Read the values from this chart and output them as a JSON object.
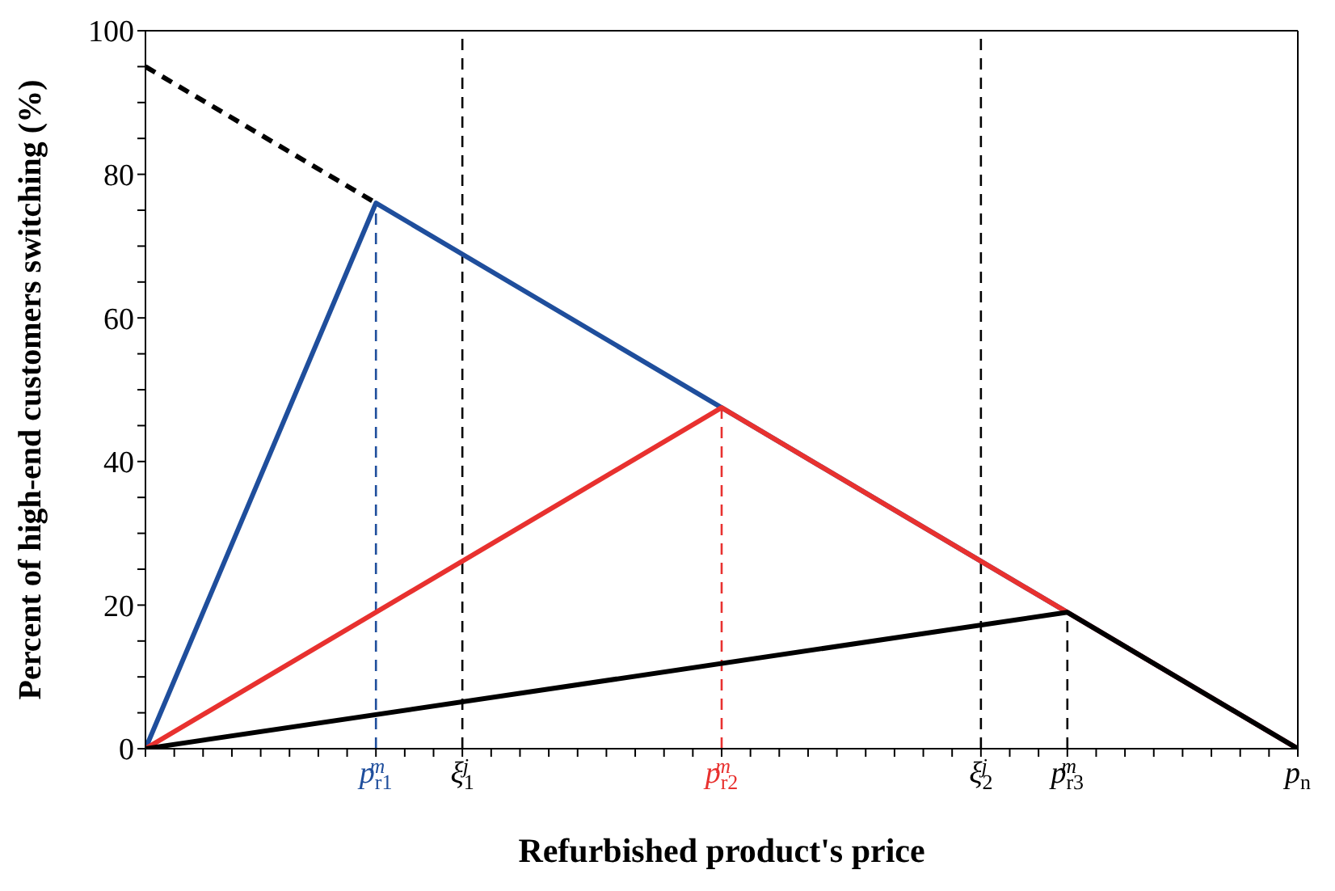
{
  "chart_data": {
    "type": "line",
    "xlabel": "Refurbished product's price",
    "ylabel": "Percent of high-end customers switching (%)",
    "categories": [
      null,
      null,
      null,
      null,
      null,
      null,
      null,
      null,
      "p$_{r1}$$^{m}$",
      null,
      null,
      "ξ$_{1}$$^{j}$",
      null,
      null,
      null,
      null,
      null,
      null,
      null,
      null,
      "p$_{r2}$$^{m}$",
      null,
      null,
      null,
      null,
      null,
      null,
      null,
      null,
      "ξ$_{2}$$^{j}$",
      null,
      null,
      "p$_{r3}$$^{m}$",
      null,
      null,
      null,
      null,
      null,
      null,
      null,
      "p$_{n}$"
    ],
    "ylim": [
      0,
      100
    ],
    "yticks": [
      0,
      {
        "value": 5,
        "label": null
      },
      {
        "value": 10,
        "label": null
      },
      {
        "value": 15,
        "label": null
      },
      20,
      {
        "value": 25,
        "label": null
      },
      {
        "value": 30,
        "label": null
      },
      {
        "value": 35,
        "label": null
      },
      40,
      {
        "value": 45,
        "label": null
      },
      {
        "value": 50,
        "label": null
      },
      {
        "value": 55,
        "label": null
      },
      60,
      {
        "value": 65,
        "label": null
      },
      {
        "value": 70,
        "label": null
      },
      {
        "value": 75,
        "label": null
      },
      80,
      {
        "value": 85,
        "label": null
      },
      {
        "value": 90,
        "label": null
      },
      {
        "value": 95,
        "label": null
      },
      100
    ],
    "marker": "none",
    "series": [
      {
        "color": "#000000",
        "line_style": "dashed",
        "values": [
          95,
          null,
          null,
          null,
          null,
          null,
          null,
          null,
          76,
          null,
          null,
          null,
          null,
          null,
          null,
          null,
          null,
          null,
          null,
          null,
          null,
          null,
          null,
          null,
          null,
          null,
          null,
          null,
          null,
          null,
          null,
          null,
          null,
          null,
          null,
          null,
          null,
          null,
          null,
          null,
          null
        ]
      },
      {
        "color": "#1f4e9c",
        "line_style": "solid",
        "values": [
          0,
          null,
          null,
          null,
          null,
          null,
          null,
          null,
          76,
          null,
          null,
          null,
          null,
          null,
          null,
          null,
          null,
          null,
          null,
          null,
          null,
          null,
          null,
          null,
          null,
          null,
          null,
          null,
          null,
          null,
          null,
          null,
          null,
          null,
          null,
          null,
          null,
          null,
          null,
          null,
          0
        ]
      },
      {
        "color": "#1f4e9c",
        "line_style": "dashed",
        "x": [
          "p$_{r1}$$^{m}$",
          "p$_{r1}$$^{m}$"
        ],
        "values": [
          0,
          76
        ]
      },
      {
        "color": "#e8312f",
        "line_style": "solid",
        "values": [
          0,
          null,
          null,
          null,
          null,
          null,
          null,
          null,
          null,
          null,
          null,
          null,
          null,
          null,
          null,
          null,
          null,
          null,
          null,
          null,
          47.5,
          null,
          null,
          null,
          null,
          null,
          null,
          null,
          null,
          null,
          null,
          null,
          null,
          null,
          null,
          null,
          null,
          null,
          null,
          null,
          0
        ]
      },
      {
        "color": "#e8312f",
        "line_style": "dashed",
        "x": [
          "p$_{r2}$$^{m}$",
          "p$_{r2}$$^{m}$"
        ],
        "values": [
          0,
          47.5
        ]
      },
      {
        "color": "#000000",
        "line_style": "solid",
        "values": [
          0,
          null,
          null,
          null,
          null,
          null,
          null,
          null,
          null,
          null,
          null,
          null,
          null,
          null,
          null,
          null,
          null,
          null,
          null,
          null,
          null,
          null,
          null,
          null,
          null,
          null,
          null,
          null,
          null,
          null,
          null,
          null,
          19,
          null,
          null,
          null,
          null,
          null,
          null,
          null,
          0
        ]
      },
      {
        "color": "#000000",
        "line_style": "dashed",
        "x": [
          "p$_{r3}$$^{m}$",
          "p$_{r3}$$^{m}$"
        ],
        "values": [
          0,
          19
        ]
      }
    ],
    "ref_lines": [
      {
        "axis": "x",
        "value": "ξ$_{1}$$^{j}$",
        "color": "#000000",
        "line_style": "dashed"
      },
      {
        "axis": "x",
        "value": "ξ$_{2}$$^{j}$",
        "color": "#000000",
        "line_style": "dashed"
      }
    ]
  }
}
